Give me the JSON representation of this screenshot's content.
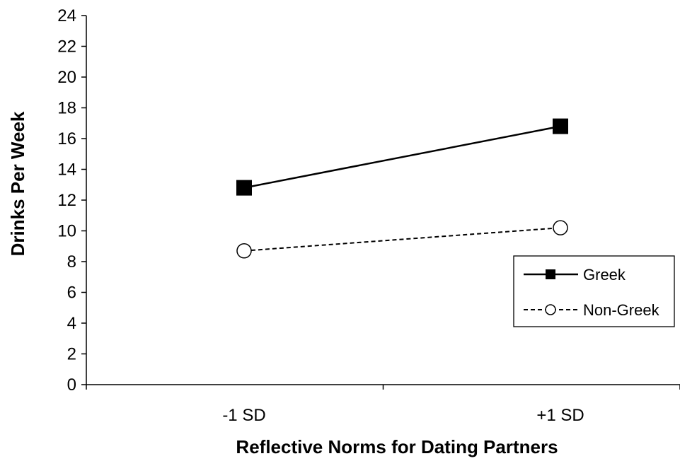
{
  "chart_data": {
    "type": "line",
    "title": "",
    "xlabel": "Reflective Norms for Dating Partners",
    "ylabel": "Drinks Per Week",
    "categories": [
      "-1 SD",
      "+1 SD"
    ],
    "ylim": [
      0,
      24
    ],
    "yticks": [
      0,
      2,
      4,
      6,
      8,
      10,
      12,
      14,
      16,
      18,
      20,
      22,
      24
    ],
    "grid": false,
    "legend_position": "right",
    "series": [
      {
        "name": "Greek",
        "values": [
          12.8,
          16.8
        ],
        "marker": "filled-square",
        "line": "solid",
        "color": "#000000"
      },
      {
        "name": "Non-Greek",
        "values": [
          8.7,
          10.2
        ],
        "marker": "open-circle",
        "line": "dashed",
        "color": "#000000"
      }
    ]
  }
}
